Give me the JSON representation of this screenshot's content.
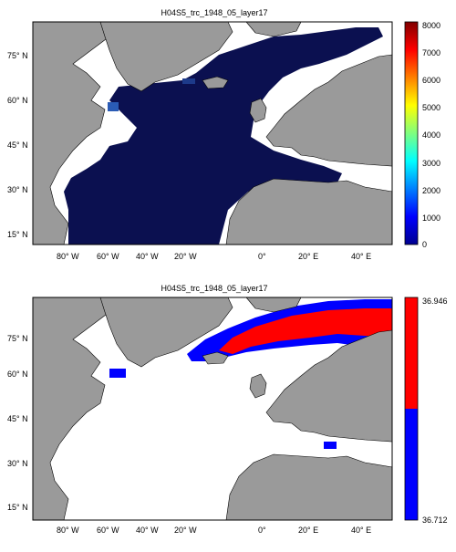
{
  "panels": [
    {
      "title": "H04S5_trc_1948_05_layer17",
      "colorbar_ticks": [
        "0",
        "1000",
        "2000",
        "3000",
        "4000",
        "5000",
        "6000",
        "7000",
        "8000"
      ],
      "lat_labels": [
        "75° N",
        "60° N",
        "45° N",
        "30° N",
        "15° N"
      ],
      "lon_labels": [
        "80° W",
        "60° W",
        "40° W",
        "20° W",
        "0°",
        "20° E",
        "40° E"
      ]
    },
    {
      "title": "H04S5_trc_1948_05_layer17",
      "colorbar_ticks": [
        "36.946",
        "36.712"
      ],
      "lat_labels": [
        "75° N",
        "60° N",
        "45° N",
        "30° N",
        "15° N"
      ],
      "lon_labels": [
        "80° W",
        "60° W",
        "40° W",
        "20° W",
        "0°",
        "20° E",
        "40° E"
      ]
    }
  ],
  "colors": {
    "land": "#9a9a9a",
    "ocean_low": "#0b1050",
    "high": "#ff0000",
    "low": "#0000ff"
  }
}
